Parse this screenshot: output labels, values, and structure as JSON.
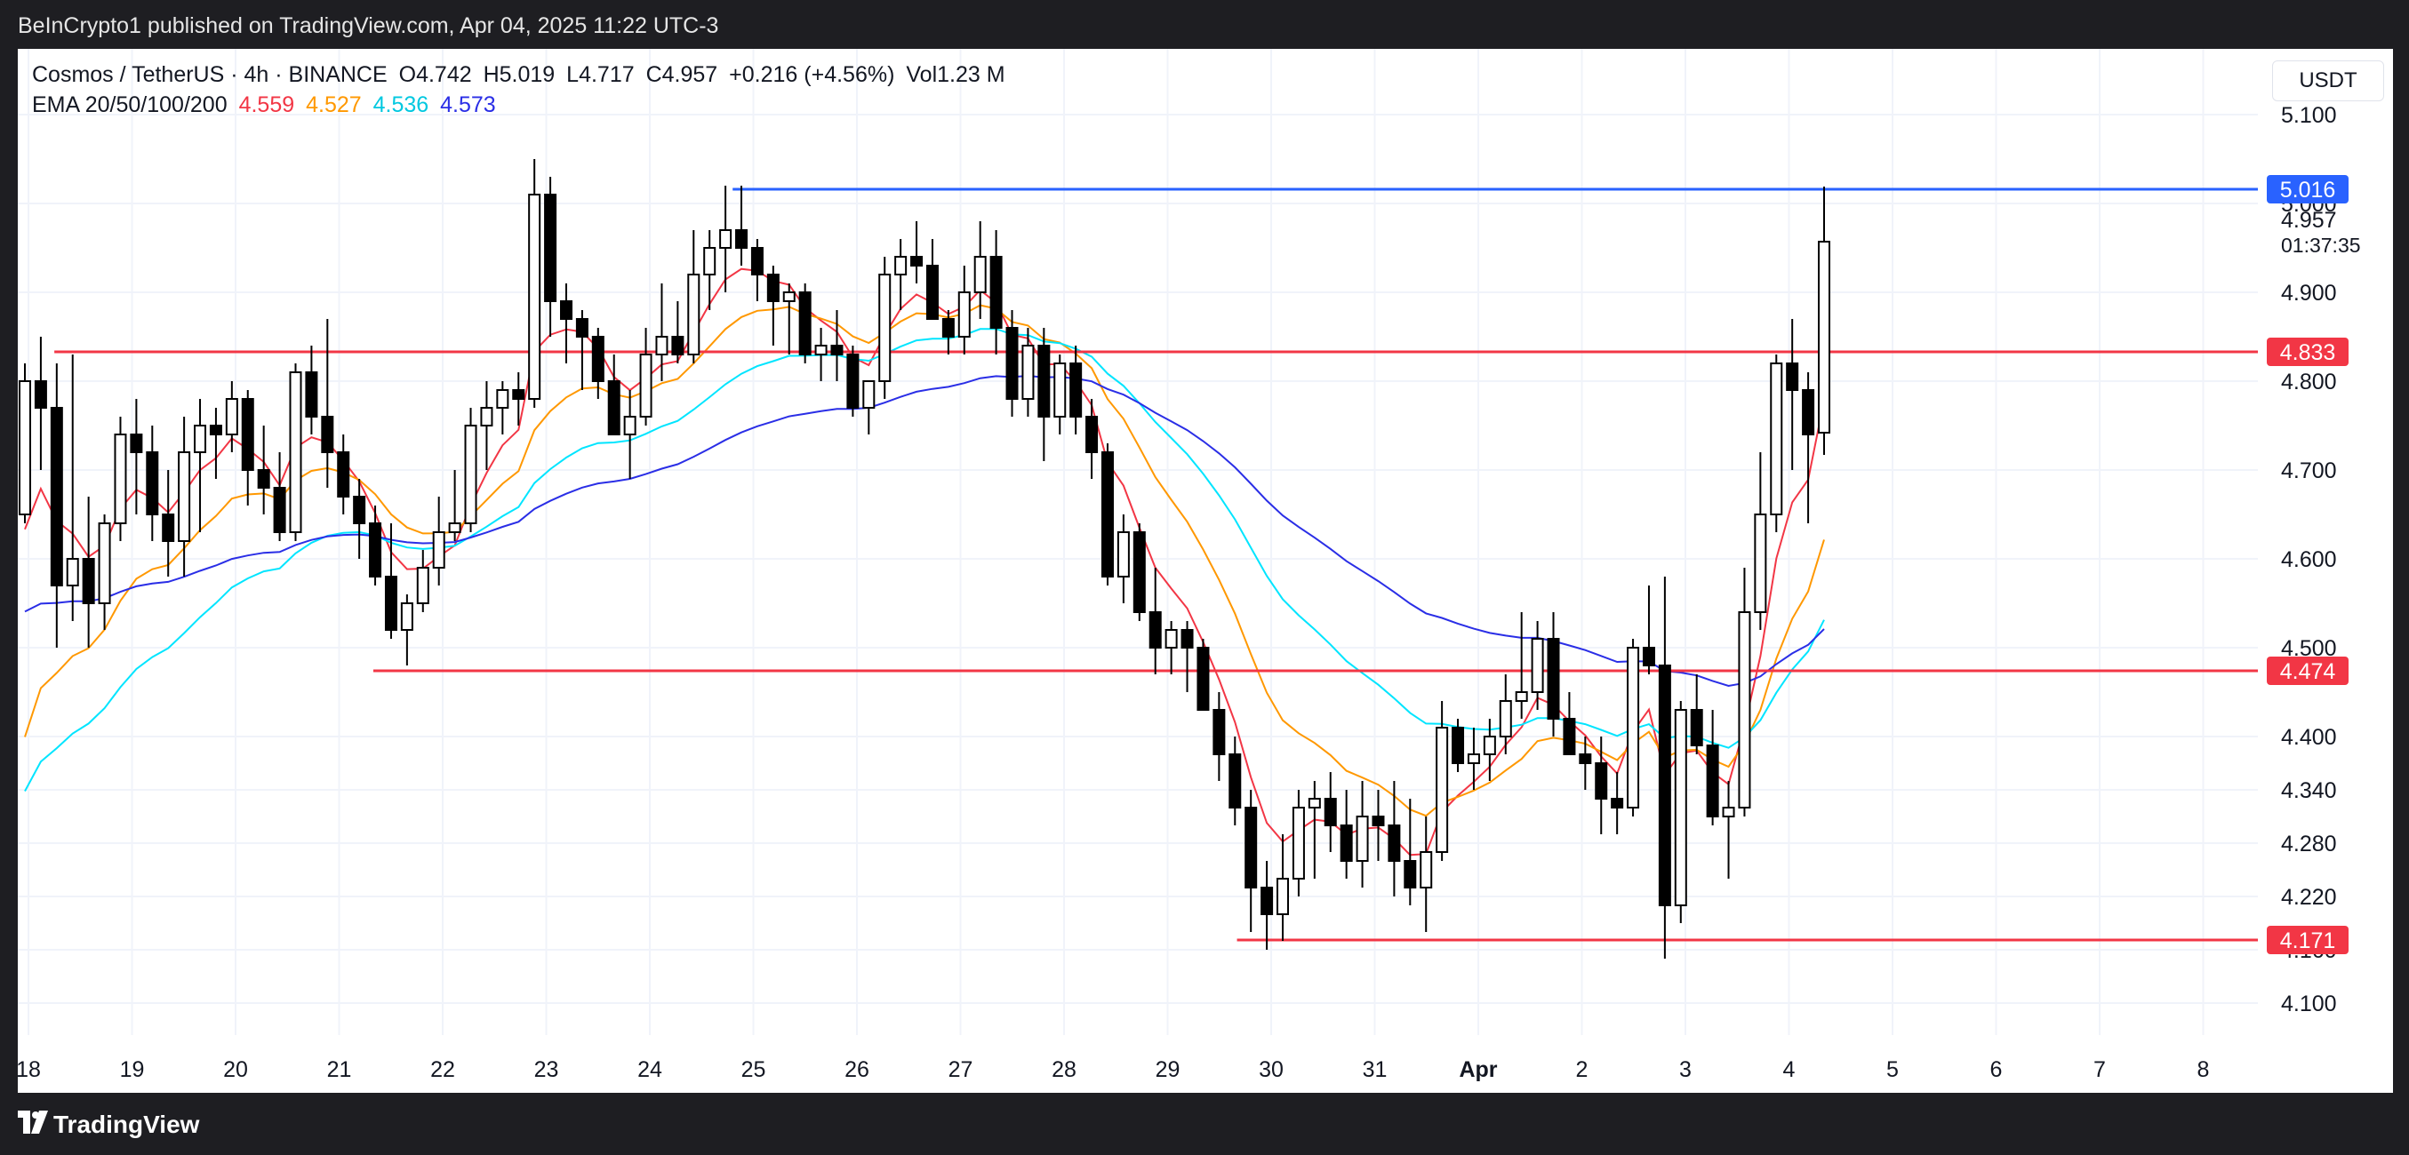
{
  "header": {
    "publisher_line": "BeInCrypto1 published on TradingView.com, Apr 04, 2025 11:22 UTC-3"
  },
  "legend": {
    "symbol": "Cosmos / TetherUS · 4h · BINANCE",
    "open": "O4.742",
    "high": "H5.019",
    "low": "L4.717",
    "close": "C4.957",
    "change": "+0.216 (+4.56%)",
    "volume": "Vol1.23 M",
    "ema_label": "EMA 20/50/100/200",
    "ema_values": [
      "4.559",
      "4.527",
      "4.536",
      "4.573"
    ]
  },
  "currency_button": "USDT",
  "price_countdown": "01:37:35",
  "footer": {
    "brand": "TradingView"
  },
  "colors": {
    "ema20": "#f23645",
    "ema50": "#ff9800",
    "ema100": "#00e5ff",
    "ema200": "#2a2ee6",
    "level_line": "#f23645",
    "high_line": "#2962ff",
    "candle_up": "#ffffff",
    "candle_down": "#000000"
  },
  "chart_data": {
    "type": "candlestick",
    "timeframe": "4h",
    "ylim": [
      4.06,
      5.11
    ],
    "x_tick_labels": [
      "18",
      "19",
      "20",
      "21",
      "22",
      "23",
      "24",
      "25",
      "26",
      "27",
      "28",
      "29",
      "30",
      "31",
      "Apr",
      "2",
      "3",
      "4",
      "5",
      "6",
      "7",
      "8"
    ],
    "y_tick_labels": [
      "4.100",
      "4.160",
      "4.220",
      "4.280",
      "4.340",
      "4.400",
      "4.500",
      "4.600",
      "4.700",
      "4.800",
      "4.900",
      "5.000",
      "5.100"
    ],
    "current_price": "4.957",
    "horizontal_levels": [
      {
        "label": "5.016",
        "value": 5.016,
        "color": "#2962ff",
        "start_day": 24.8
      },
      {
        "label": "4.833",
        "value": 4.833,
        "color": "#f23645",
        "start_day": 18.25
      },
      {
        "label": "4.474",
        "value": 4.474,
        "color": "#f23645",
        "start_day": 21.33
      },
      {
        "label": "4.171",
        "value": 4.171,
        "color": "#f23645",
        "start_day": 29.67
      }
    ],
    "candles": [
      [
        4.65,
        4.82,
        4.64,
        4.8
      ],
      [
        4.8,
        4.85,
        4.7,
        4.77
      ],
      [
        4.77,
        4.82,
        4.5,
        4.57
      ],
      [
        4.57,
        4.83,
        4.53,
        4.6
      ],
      [
        4.6,
        4.67,
        4.5,
        4.55
      ],
      [
        4.55,
        4.65,
        4.52,
        4.64
      ],
      [
        4.64,
        4.76,
        4.62,
        4.74
      ],
      [
        4.74,
        4.78,
        4.65,
        4.72
      ],
      [
        4.72,
        4.75,
        4.62,
        4.65
      ],
      [
        4.65,
        4.7,
        4.58,
        4.62
      ],
      [
        4.62,
        4.76,
        4.58,
        4.72
      ],
      [
        4.72,
        4.78,
        4.63,
        4.75
      ],
      [
        4.75,
        4.77,
        4.69,
        4.74
      ],
      [
        4.74,
        4.8,
        4.72,
        4.78
      ],
      [
        4.78,
        4.79,
        4.66,
        4.7
      ],
      [
        4.7,
        4.75,
        4.65,
        4.68
      ],
      [
        4.68,
        4.72,
        4.62,
        4.63
      ],
      [
        4.63,
        4.82,
        4.62,
        4.81
      ],
      [
        4.81,
        4.84,
        4.74,
        4.76
      ],
      [
        4.76,
        4.87,
        4.68,
        4.72
      ],
      [
        4.72,
        4.74,
        4.65,
        4.67
      ],
      [
        4.67,
        4.69,
        4.6,
        4.64
      ],
      [
        4.64,
        4.66,
        4.57,
        4.58
      ],
      [
        4.58,
        4.64,
        4.51,
        4.52
      ],
      [
        4.52,
        4.56,
        4.48,
        4.55
      ],
      [
        4.55,
        4.61,
        4.54,
        4.59
      ],
      [
        4.59,
        4.67,
        4.57,
        4.63
      ],
      [
        4.63,
        4.7,
        4.62,
        4.64
      ],
      [
        4.64,
        4.77,
        4.63,
        4.75
      ],
      [
        4.75,
        4.8,
        4.7,
        4.77
      ],
      [
        4.77,
        4.8,
        4.74,
        4.79
      ],
      [
        4.79,
        4.81,
        4.75,
        4.78
      ],
      [
        4.78,
        5.05,
        4.77,
        5.01
      ],
      [
        5.01,
        5.03,
        4.85,
        4.89
      ],
      [
        4.89,
        4.91,
        4.82,
        4.87
      ],
      [
        4.87,
        4.88,
        4.79,
        4.85
      ],
      [
        4.85,
        4.86,
        4.78,
        4.8
      ],
      [
        4.8,
        4.83,
        4.74,
        4.74
      ],
      [
        4.74,
        4.79,
        4.69,
        4.76
      ],
      [
        4.76,
        4.86,
        4.75,
        4.83
      ],
      [
        4.83,
        4.91,
        4.8,
        4.85
      ],
      [
        4.85,
        4.89,
        4.82,
        4.83
      ],
      [
        4.83,
        4.97,
        4.82,
        4.92
      ],
      [
        4.92,
        4.97,
        4.88,
        4.95
      ],
      [
        4.95,
        5.02,
        4.9,
        4.97
      ],
      [
        4.97,
        5.02,
        4.93,
        4.95
      ],
      [
        4.95,
        4.96,
        4.89,
        4.92
      ],
      [
        4.92,
        4.93,
        4.84,
        4.89
      ],
      [
        4.89,
        4.91,
        4.83,
        4.9
      ],
      [
        4.9,
        4.91,
        4.82,
        4.83
      ],
      [
        4.83,
        4.86,
        4.8,
        4.84
      ],
      [
        4.84,
        4.88,
        4.8,
        4.83
      ],
      [
        4.83,
        4.84,
        4.76,
        4.77
      ],
      [
        4.77,
        4.8,
        4.74,
        4.8
      ],
      [
        4.8,
        4.94,
        4.78,
        4.92
      ],
      [
        4.92,
        4.96,
        4.88,
        4.94
      ],
      [
        4.94,
        4.98,
        4.91,
        4.93
      ],
      [
        4.93,
        4.96,
        4.87,
        4.87
      ],
      [
        4.87,
        4.88,
        4.83,
        4.85
      ],
      [
        4.85,
        4.93,
        4.83,
        4.9
      ],
      [
        4.9,
        4.98,
        4.87,
        4.94
      ],
      [
        4.94,
        4.97,
        4.83,
        4.86
      ],
      [
        4.86,
        4.88,
        4.76,
        4.78
      ],
      [
        4.78,
        4.86,
        4.76,
        4.84
      ],
      [
        4.84,
        4.86,
        4.71,
        4.76
      ],
      [
        4.76,
        4.83,
        4.74,
        4.82
      ],
      [
        4.82,
        4.84,
        4.74,
        4.76
      ],
      [
        4.76,
        4.78,
        4.69,
        4.72
      ],
      [
        4.72,
        4.73,
        4.57,
        4.58
      ],
      [
        4.58,
        4.65,
        4.55,
        4.63
      ],
      [
        4.63,
        4.64,
        4.53,
        4.54
      ],
      [
        4.54,
        4.59,
        4.47,
        4.5
      ],
      [
        4.5,
        4.53,
        4.47,
        4.52
      ],
      [
        4.52,
        4.53,
        4.45,
        4.5
      ],
      [
        4.5,
        4.51,
        4.43,
        4.43
      ],
      [
        4.43,
        4.45,
        4.35,
        4.38
      ],
      [
        4.38,
        4.4,
        4.3,
        4.32
      ],
      [
        4.32,
        4.34,
        4.18,
        4.23
      ],
      [
        4.23,
        4.26,
        4.16,
        4.2
      ],
      [
        4.2,
        4.29,
        4.17,
        4.24
      ],
      [
        4.24,
        4.34,
        4.22,
        4.32
      ],
      [
        4.32,
        4.35,
        4.24,
        4.33
      ],
      [
        4.33,
        4.36,
        4.27,
        4.3
      ],
      [
        4.3,
        4.34,
        4.24,
        4.26
      ],
      [
        4.26,
        4.35,
        4.23,
        4.31
      ],
      [
        4.31,
        4.34,
        4.26,
        4.3
      ],
      [
        4.3,
        4.35,
        4.22,
        4.26
      ],
      [
        4.26,
        4.33,
        4.21,
        4.23
      ],
      [
        4.23,
        4.31,
        4.18,
        4.27
      ],
      [
        4.27,
        4.44,
        4.26,
        4.41
      ],
      [
        4.41,
        4.42,
        4.36,
        4.37
      ],
      [
        4.37,
        4.41,
        4.34,
        4.38
      ],
      [
        4.38,
        4.42,
        4.35,
        4.4
      ],
      [
        4.4,
        4.47,
        4.38,
        4.44
      ],
      [
        4.44,
        4.54,
        4.42,
        4.45
      ],
      [
        4.45,
        4.53,
        4.43,
        4.51
      ],
      [
        4.51,
        4.54,
        4.4,
        4.42
      ],
      [
        4.42,
        4.45,
        4.38,
        4.38
      ],
      [
        4.38,
        4.4,
        4.34,
        4.37
      ],
      [
        4.37,
        4.4,
        4.29,
        4.33
      ],
      [
        4.33,
        4.36,
        4.29,
        4.32
      ],
      [
        4.32,
        4.51,
        4.31,
        4.5
      ],
      [
        4.5,
        4.57,
        4.47,
        4.48
      ],
      [
        4.48,
        4.58,
        4.15,
        4.21
      ],
      [
        4.21,
        4.44,
        4.19,
        4.43
      ],
      [
        4.43,
        4.47,
        4.38,
        4.39
      ],
      [
        4.39,
        4.43,
        4.3,
        4.31
      ],
      [
        4.31,
        4.35,
        4.24,
        4.32
      ],
      [
        4.32,
        4.59,
        4.31,
        4.54
      ],
      [
        4.54,
        4.72,
        4.52,
        4.65
      ],
      [
        4.65,
        4.83,
        4.63,
        4.82
      ],
      [
        4.82,
        4.87,
        4.7,
        4.79
      ],
      [
        4.79,
        4.81,
        4.64,
        4.74
      ],
      [
        4.742,
        5.019,
        4.717,
        4.957
      ]
    ],
    "ema_final": {
      "EMA 20": 4.559,
      "EMA 50": 4.527,
      "EMA 100": 4.536,
      "EMA 200": 4.573
    }
  }
}
